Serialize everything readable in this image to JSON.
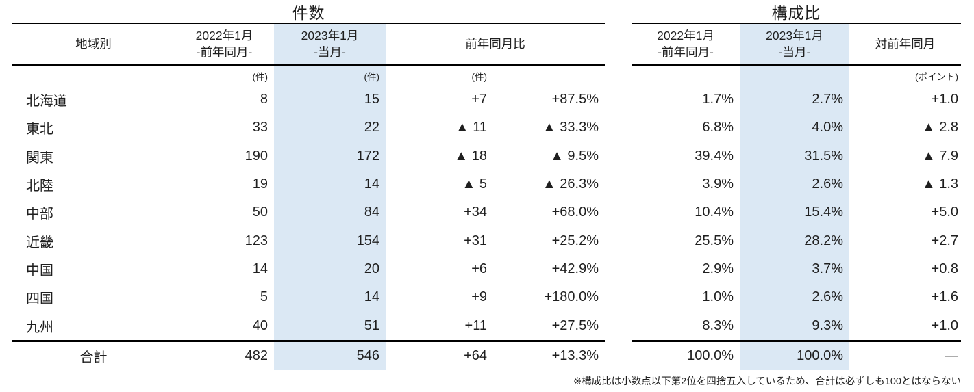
{
  "count_section": {
    "title": "件数",
    "region_header": "地域別",
    "col_prev_line1": "2022年1月",
    "col_prev_line2": "-前年同月-",
    "col_curr_line1": "2023年1月",
    "col_curr_line2": "-当月-",
    "col_yoy": "前年同月比",
    "unit_prev": "(件)",
    "unit_curr": "(件)",
    "unit_yoy": "(件)"
  },
  "ratio_section": {
    "title": "構成比",
    "col_prev_line1": "2022年1月",
    "col_prev_line2": "-前年同月-",
    "col_curr_line1": "2023年1月",
    "col_curr_line2": "-当月-",
    "col_yoy": "対前年同月",
    "unit_yoy": "(ポイント)"
  },
  "rows": [
    {
      "region": "北海道",
      "count_prev": "8",
      "count_curr": "15",
      "diff": "+7",
      "diff_pct": "+87.5%",
      "ratio_prev": "1.7%",
      "ratio_curr": "2.7%",
      "ratio_diff": "+1.0"
    },
    {
      "region": "東北",
      "count_prev": "33",
      "count_curr": "22",
      "diff": "▲ 11",
      "diff_pct": "▲ 33.3%",
      "ratio_prev": "6.8%",
      "ratio_curr": "4.0%",
      "ratio_diff": "▲ 2.8"
    },
    {
      "region": "関東",
      "count_prev": "190",
      "count_curr": "172",
      "diff": "▲ 18",
      "diff_pct": "▲ 9.5%",
      "ratio_prev": "39.4%",
      "ratio_curr": "31.5%",
      "ratio_diff": "▲ 7.9"
    },
    {
      "region": "北陸",
      "count_prev": "19",
      "count_curr": "14",
      "diff": "▲ 5",
      "diff_pct": "▲ 26.3%",
      "ratio_prev": "3.9%",
      "ratio_curr": "2.6%",
      "ratio_diff": "▲ 1.3"
    },
    {
      "region": "中部",
      "count_prev": "50",
      "count_curr": "84",
      "diff": "+34",
      "diff_pct": "+68.0%",
      "ratio_prev": "10.4%",
      "ratio_curr": "15.4%",
      "ratio_diff": "+5.0"
    },
    {
      "region": "近畿",
      "count_prev": "123",
      "count_curr": "154",
      "diff": "+31",
      "diff_pct": "+25.2%",
      "ratio_prev": "25.5%",
      "ratio_curr": "28.2%",
      "ratio_diff": "+2.7"
    },
    {
      "region": "中国",
      "count_prev": "14",
      "count_curr": "20",
      "diff": "+6",
      "diff_pct": "+42.9%",
      "ratio_prev": "2.9%",
      "ratio_curr": "3.7%",
      "ratio_diff": "+0.8"
    },
    {
      "region": "四国",
      "count_prev": "5",
      "count_curr": "14",
      "diff": "+9",
      "diff_pct": "+180.0%",
      "ratio_prev": "1.0%",
      "ratio_curr": "2.6%",
      "ratio_diff": "+1.6"
    },
    {
      "region": "九州",
      "count_prev": "40",
      "count_curr": "51",
      "diff": "+11",
      "diff_pct": "+27.5%",
      "ratio_prev": "8.3%",
      "ratio_curr": "9.3%",
      "ratio_diff": "+1.0"
    }
  ],
  "total_row": {
    "region": "合計",
    "count_prev": "482",
    "count_curr": "546",
    "diff": "+64",
    "diff_pct": "+13.3%",
    "ratio_prev": "100.0%",
    "ratio_curr": "100.0%",
    "ratio_diff": "—"
  },
  "footnote": "※構成比は小数点以下第2位を四捨五入しているため、合計は必ずしも100とはならない",
  "colors": {
    "highlight": "#dbe8f4",
    "line": "#000000",
    "text": "#1f1f1f"
  }
}
